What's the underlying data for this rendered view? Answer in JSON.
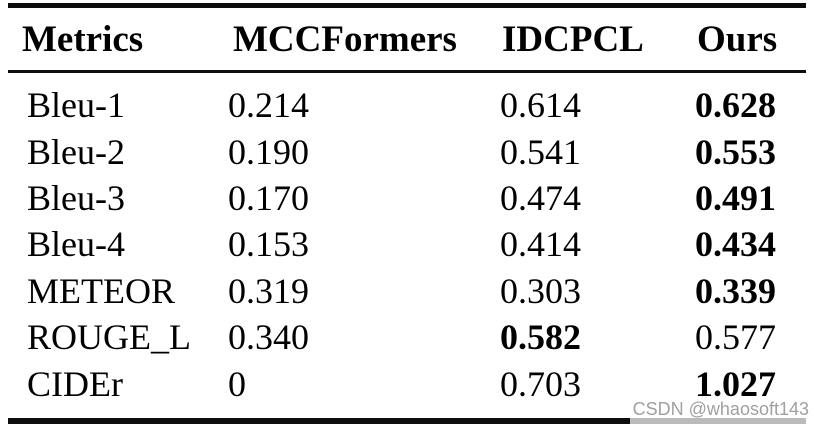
{
  "table": {
    "headers": {
      "metric": "Metrics",
      "mccformers": "MCCFormers",
      "idcpcl": "IDCPCL",
      "ours": "Ours"
    },
    "rows": [
      {
        "metric": {
          "text": "Bleu-1",
          "bold": false
        },
        "mccformers": {
          "text": "0.214",
          "bold": false
        },
        "idcpcl": {
          "text": "0.614",
          "bold": false
        },
        "ours": {
          "text": "0.628",
          "bold": true
        }
      },
      {
        "metric": {
          "text": "Bleu-2",
          "bold": false
        },
        "mccformers": {
          "text": "0.190",
          "bold": false
        },
        "idcpcl": {
          "text": "0.541",
          "bold": false
        },
        "ours": {
          "text": "0.553",
          "bold": true
        }
      },
      {
        "metric": {
          "text": "Bleu-3",
          "bold": false
        },
        "mccformers": {
          "text": "0.170",
          "bold": false
        },
        "idcpcl": {
          "text": "0.474",
          "bold": false
        },
        "ours": {
          "text": "0.491",
          "bold": true
        }
      },
      {
        "metric": {
          "text": "Bleu-4",
          "bold": false
        },
        "mccformers": {
          "text": "0.153",
          "bold": false
        },
        "idcpcl": {
          "text": "0.414",
          "bold": false
        },
        "ours": {
          "text": "0.434",
          "bold": true
        }
      },
      {
        "metric": {
          "text": "METEOR",
          "bold": false
        },
        "mccformers": {
          "text": "0.319",
          "bold": false
        },
        "idcpcl": {
          "text": "0.303",
          "bold": false
        },
        "ours": {
          "text": "0.339",
          "bold": true
        }
      },
      {
        "metric": {
          "text": "ROUGE_L",
          "bold": false
        },
        "mccformers": {
          "text": "0.340",
          "bold": false
        },
        "idcpcl": {
          "text": "0.582",
          "bold": true
        },
        "ours": {
          "text": "0.577",
          "bold": false
        }
      },
      {
        "metric": {
          "text": "CIDEr",
          "bold": false
        },
        "mccformers": {
          "text": "0",
          "bold": false
        },
        "idcpcl": {
          "text": "0.703",
          "bold": false
        },
        "ours": {
          "text": "1.027",
          "bold": true
        }
      }
    ]
  },
  "watermark": {
    "text": "CSDN @whaosoft143"
  },
  "colors": {
    "background": "#ffffff",
    "text": "#000000",
    "rule": "#0d0d0d",
    "watermark": "#a0a0a0"
  }
}
